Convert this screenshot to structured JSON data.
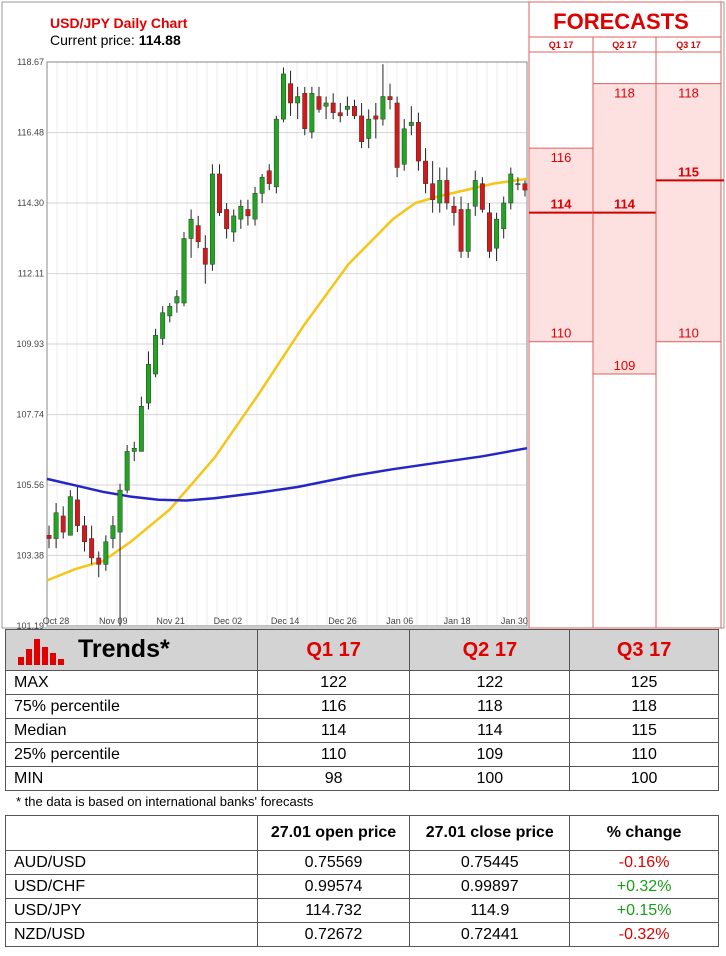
{
  "chart_data": {
    "type": "candlestick",
    "title": "USD/JPY Daily Chart",
    "current_price_label": "Current price:",
    "current_price": "114.88",
    "y_ticks": [
      "118.67",
      "116.48",
      "114.30",
      "112.11",
      "109.93",
      "107.74",
      "105.56",
      "103.38",
      "101.19"
    ],
    "x_ticks": [
      "Oct 28",
      "Nov 09",
      "Nov 21",
      "Dec 02",
      "Dec 14",
      "Dec 26",
      "Jan 06",
      "Jan 18",
      "Jan 30"
    ],
    "ylim": [
      101.19,
      118.67
    ],
    "grid": true,
    "candles": [
      {
        "o": 104.0,
        "h": 104.3,
        "l": 103.6,
        "c": 103.9
      },
      {
        "o": 103.9,
        "h": 105.0,
        "l": 103.6,
        "c": 104.7
      },
      {
        "o": 104.6,
        "h": 104.9,
        "l": 103.9,
        "c": 104.1
      },
      {
        "o": 104.0,
        "h": 105.4,
        "l": 104.0,
        "c": 105.2
      },
      {
        "o": 105.1,
        "h": 105.5,
        "l": 104.1,
        "c": 104.3
      },
      {
        "o": 104.3,
        "h": 104.6,
        "l": 103.5,
        "c": 103.8
      },
      {
        "o": 103.9,
        "h": 104.3,
        "l": 103.1,
        "c": 103.3
      },
      {
        "o": 103.3,
        "h": 103.5,
        "l": 102.7,
        "c": 103.1
      },
      {
        "o": 103.1,
        "h": 104.0,
        "l": 102.9,
        "c": 103.8
      },
      {
        "o": 103.9,
        "h": 104.6,
        "l": 103.6,
        "c": 104.3
      },
      {
        "o": 104.1,
        "h": 105.6,
        "l": 101.2,
        "c": 105.4
      },
      {
        "o": 105.4,
        "h": 106.8,
        "l": 105.3,
        "c": 106.6
      },
      {
        "o": 106.6,
        "h": 106.9,
        "l": 106.3,
        "c": 106.7
      },
      {
        "o": 106.6,
        "h": 108.3,
        "l": 106.6,
        "c": 108.0
      },
      {
        "o": 108.1,
        "h": 109.7,
        "l": 107.9,
        "c": 109.3
      },
      {
        "o": 109.0,
        "h": 110.4,
        "l": 108.9,
        "c": 110.2
      },
      {
        "o": 110.1,
        "h": 111.1,
        "l": 109.9,
        "c": 110.9
      },
      {
        "o": 110.8,
        "h": 111.2,
        "l": 110.6,
        "c": 111.1
      },
      {
        "o": 111.2,
        "h": 111.6,
        "l": 110.9,
        "c": 111.4
      },
      {
        "o": 111.2,
        "h": 113.4,
        "l": 111.1,
        "c": 113.2
      },
      {
        "o": 113.2,
        "h": 114.1,
        "l": 112.6,
        "c": 113.8
      },
      {
        "o": 113.6,
        "h": 113.9,
        "l": 112.9,
        "c": 113.1
      },
      {
        "o": 112.9,
        "h": 113.3,
        "l": 111.8,
        "c": 112.4
      },
      {
        "o": 112.4,
        "h": 115.5,
        "l": 112.2,
        "c": 115.2
      },
      {
        "o": 115.2,
        "h": 115.5,
        "l": 113.9,
        "c": 114.0
      },
      {
        "o": 114.1,
        "h": 114.3,
        "l": 113.2,
        "c": 113.5
      },
      {
        "o": 113.4,
        "h": 114.1,
        "l": 113.1,
        "c": 113.9
      },
      {
        "o": 113.8,
        "h": 114.4,
        "l": 113.5,
        "c": 114.2
      },
      {
        "o": 114.1,
        "h": 114.4,
        "l": 113.6,
        "c": 113.9
      },
      {
        "o": 113.8,
        "h": 114.8,
        "l": 113.6,
        "c": 114.6
      },
      {
        "o": 114.6,
        "h": 115.2,
        "l": 114.3,
        "c": 115.1
      },
      {
        "o": 115.3,
        "h": 115.5,
        "l": 114.7,
        "c": 114.9
      },
      {
        "o": 114.8,
        "h": 117.0,
        "l": 114.6,
        "c": 116.9
      },
      {
        "o": 116.9,
        "h": 118.5,
        "l": 116.8,
        "c": 118.3
      },
      {
        "o": 118.0,
        "h": 118.4,
        "l": 117.0,
        "c": 117.4
      },
      {
        "o": 117.4,
        "h": 117.9,
        "l": 116.9,
        "c": 117.6
      },
      {
        "o": 117.7,
        "h": 117.9,
        "l": 116.4,
        "c": 116.6
      },
      {
        "o": 116.5,
        "h": 117.9,
        "l": 116.3,
        "c": 117.7
      },
      {
        "o": 117.6,
        "h": 117.9,
        "l": 117.1,
        "c": 117.2
      },
      {
        "o": 117.3,
        "h": 117.6,
        "l": 116.9,
        "c": 117.4
      },
      {
        "o": 117.4,
        "h": 117.7,
        "l": 116.9,
        "c": 117.1
      },
      {
        "o": 117.1,
        "h": 117.4,
        "l": 116.8,
        "c": 117.0
      },
      {
        "o": 117.2,
        "h": 117.6,
        "l": 117.0,
        "c": 117.3
      },
      {
        "o": 117.3,
        "h": 117.5,
        "l": 116.9,
        "c": 117.0
      },
      {
        "o": 117.0,
        "h": 117.4,
        "l": 116.0,
        "c": 116.2
      },
      {
        "o": 116.3,
        "h": 117.2,
        "l": 116.0,
        "c": 116.9
      },
      {
        "o": 117.0,
        "h": 117.4,
        "l": 116.3,
        "c": 116.9
      },
      {
        "o": 116.9,
        "h": 118.6,
        "l": 116.7,
        "c": 117.6
      },
      {
        "o": 117.6,
        "h": 118.0,
        "l": 117.2,
        "c": 117.5
      },
      {
        "o": 117.4,
        "h": 117.6,
        "l": 115.1,
        "c": 115.4
      },
      {
        "o": 115.5,
        "h": 116.9,
        "l": 115.3,
        "c": 116.6
      },
      {
        "o": 116.7,
        "h": 117.3,
        "l": 116.4,
        "c": 116.8
      },
      {
        "o": 116.8,
        "h": 117.1,
        "l": 115.3,
        "c": 115.6
      },
      {
        "o": 115.6,
        "h": 116.0,
        "l": 114.6,
        "c": 114.9
      },
      {
        "o": 114.9,
        "h": 115.6,
        "l": 114.0,
        "c": 114.4
      },
      {
        "o": 114.3,
        "h": 115.4,
        "l": 114.0,
        "c": 115.0
      },
      {
        "o": 115.0,
        "h": 115.4,
        "l": 114.1,
        "c": 114.3
      },
      {
        "o": 114.2,
        "h": 114.5,
        "l": 113.6,
        "c": 114.0
      },
      {
        "o": 114.1,
        "h": 114.5,
        "l": 112.6,
        "c": 112.8
      },
      {
        "o": 112.8,
        "h": 114.3,
        "l": 112.6,
        "c": 114.1
      },
      {
        "o": 114.2,
        "h": 115.3,
        "l": 113.9,
        "c": 115.0
      },
      {
        "o": 114.9,
        "h": 115.1,
        "l": 114.0,
        "c": 114.1
      },
      {
        "o": 114.0,
        "h": 114.3,
        "l": 112.6,
        "c": 112.8
      },
      {
        "o": 112.9,
        "h": 114.0,
        "l": 112.5,
        "c": 113.8
      },
      {
        "o": 113.5,
        "h": 114.5,
        "l": 113.2,
        "c": 114.3
      },
      {
        "o": 114.3,
        "h": 115.4,
        "l": 114.1,
        "c": 115.2
      },
      {
        "o": 114.9,
        "h": 115.1,
        "l": 114.7,
        "c": 114.9
      },
      {
        "o": 114.9,
        "h": 115.0,
        "l": 114.5,
        "c": 114.7
      }
    ],
    "series": [
      {
        "name": "",
        "color": "#f5c518",
        "values": [
          [
            0,
            102.6
          ],
          [
            5,
            102.95
          ],
          [
            10,
            103.2
          ],
          [
            15,
            103.8
          ],
          [
            22,
            104.8
          ],
          [
            30,
            106.4
          ],
          [
            38,
            108.4
          ],
          [
            46,
            110.5
          ],
          [
            54,
            112.4
          ],
          [
            62,
            113.8
          ],
          [
            66,
            114.3
          ],
          [
            70,
            114.5
          ],
          [
            75,
            114.7
          ],
          [
            80,
            114.9
          ],
          [
            86,
            115.05
          ]
        ]
      },
      {
        "name": "",
        "color": "#2525c8",
        "values": [
          [
            0,
            105.75
          ],
          [
            5,
            105.55
          ],
          [
            10,
            105.35
          ],
          [
            15,
            105.2
          ],
          [
            20,
            105.1
          ],
          [
            25,
            105.08
          ],
          [
            30,
            105.15
          ],
          [
            37,
            105.3
          ],
          [
            45,
            105.5
          ],
          [
            55,
            105.85
          ],
          [
            62,
            106.05
          ],
          [
            70,
            106.25
          ],
          [
            78,
            106.45
          ],
          [
            86,
            106.7
          ]
        ]
      }
    ]
  },
  "forecasts": {
    "title": "FORECASTS",
    "columns": [
      {
        "label": "Q1 17",
        "high": "116",
        "median": "114",
        "low": "110",
        "high_val": 116,
        "median_val": 114,
        "low_val": 110
      },
      {
        "label": "Q2 17",
        "high": "118",
        "median": "114",
        "low": "109",
        "high_val": 118,
        "median_val": 114,
        "low_val": 109
      },
      {
        "label": "Q3 17",
        "high": "118",
        "median": "115",
        "low": "110",
        "high_val": 118,
        "median_val": 115,
        "low_val": 110
      }
    ]
  },
  "trends": {
    "title": "Trends*",
    "columns": [
      "Q1 17",
      "Q2 17",
      "Q3 17"
    ],
    "rows": [
      {
        "label": "MAX",
        "values": [
          "122",
          "122",
          "125"
        ]
      },
      {
        "label": "75% percentile",
        "values": [
          "116",
          "118",
          "118"
        ]
      },
      {
        "label": "Median",
        "values": [
          "114",
          "114",
          "115"
        ]
      },
      {
        "label": "25% percentile",
        "values": [
          "110",
          "109",
          "110"
        ]
      },
      {
        "label": "MIN",
        "values": [
          "98",
          "100",
          "100"
        ]
      }
    ],
    "footnote": "* the data is based on international banks' forecasts"
  },
  "prices": {
    "headers": [
      "",
      "27.01 open price",
      "27.01 close price",
      "% change"
    ],
    "rows": [
      {
        "pair": "AUD/USD",
        "open": "0.75569",
        "close": "0.75445",
        "change": "-0.16%",
        "dir": "neg"
      },
      {
        "pair": "USD/CHF",
        "open": "0.99574",
        "close": "0.99897",
        "change": "+0.32%",
        "dir": "pos"
      },
      {
        "pair": "USD/JPY",
        "open": "114.732",
        "close": "114.9",
        "change": "+0.15%",
        "dir": "pos"
      },
      {
        "pair": "NZD/USD",
        "open": "0.72672",
        "close": "0.72441",
        "change": "-0.32%",
        "dir": "neg"
      }
    ]
  },
  "colors": {
    "up": "#1fa51f",
    "down": "#d81818",
    "accent": "#e10000",
    "forecast_fill": "#fde0e0"
  }
}
